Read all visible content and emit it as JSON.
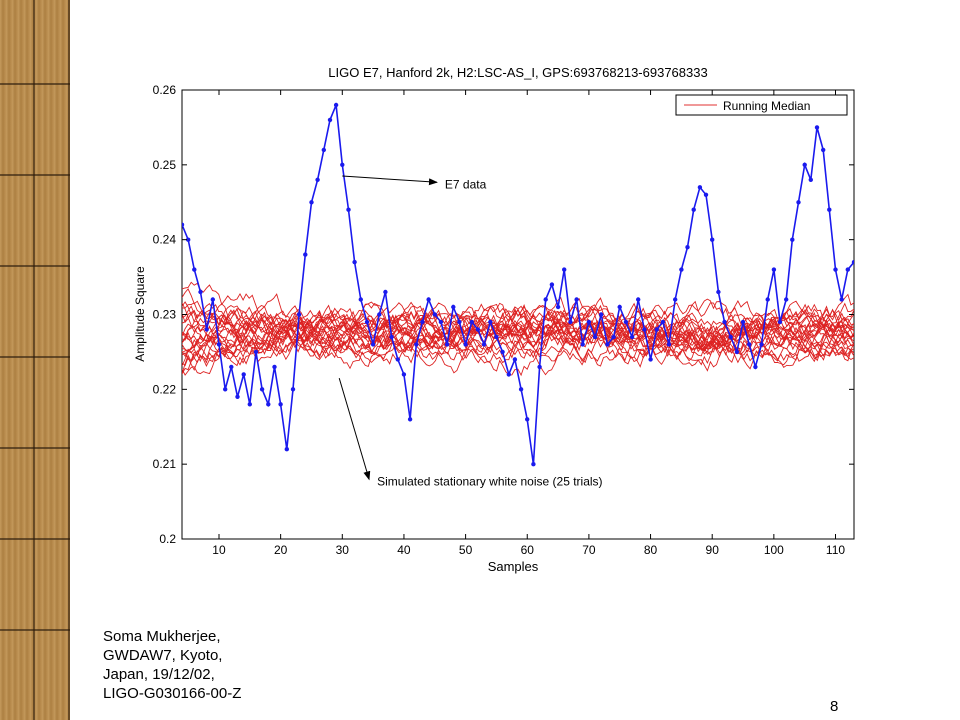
{
  "footer": {
    "lines": [
      "Soma Mukherjee,",
      "GWDAW7, Kyoto,",
      "Japan, 19/12/02,",
      "LIGO-G030166-00-Z"
    ],
    "slide_number": "8"
  },
  "chart_data": {
    "type": "line",
    "title": "LIGO E7, Hanford 2k, H2:LSC-AS_I, GPS:693768213-693768333",
    "xlabel": "Samples",
    "ylabel": "Amplitude Square",
    "xlim": [
      4,
      113
    ],
    "ylim": [
      0.2,
      0.26
    ],
    "xticks": [
      10,
      20,
      30,
      40,
      50,
      60,
      70,
      80,
      90,
      100,
      110
    ],
    "yticks": [
      0.2,
      0.21,
      0.22,
      0.23,
      0.24,
      0.25,
      0.26
    ],
    "legend": {
      "placement": "top-right",
      "entries": [
        {
          "label": "Running Median",
          "color": "#e03030"
        }
      ]
    },
    "grid": false,
    "colors": {
      "noise": "#dd2222",
      "data": "#1a1aee"
    },
    "annotations": [
      {
        "text": "E7 data",
        "xy": [
          30,
          0.2485
        ],
        "xytext": [
          46,
          0.2474
        ]
      },
      {
        "text": "Simulated stationary white noise (25 trials)",
        "xy": [
          29.5,
          0.2215
        ],
        "xytext": [
          35,
          0.2077
        ]
      }
    ],
    "series": [
      {
        "color": "#1a1aee",
        "x": [
          4,
          5,
          6,
          7,
          8,
          9,
          10,
          11,
          12,
          13,
          14,
          15,
          16,
          17,
          18,
          19,
          20,
          21,
          22,
          23,
          24,
          25,
          26,
          27,
          28,
          29,
          30,
          31,
          32,
          33,
          34,
          35,
          36,
          37,
          38,
          39,
          40,
          41,
          42,
          43,
          44,
          45,
          46,
          47,
          48,
          49,
          50,
          51,
          52,
          53,
          54,
          55,
          56,
          57,
          58,
          59,
          60,
          61,
          62,
          63,
          64,
          65,
          66,
          67,
          68,
          69,
          70,
          71,
          72,
          73,
          74,
          75,
          76,
          77,
          78,
          79,
          80,
          81,
          82,
          83,
          84,
          85,
          86,
          87,
          88,
          89,
          90,
          91,
          92,
          93,
          94,
          95,
          96,
          97,
          98,
          99,
          100,
          101,
          102,
          103,
          104,
          105,
          106,
          107,
          108,
          109,
          110,
          111,
          112,
          113
        ],
        "values": [
          0.242,
          0.24,
          0.236,
          0.233,
          0.228,
          0.232,
          0.226,
          0.22,
          0.223,
          0.219,
          0.222,
          0.218,
          0.225,
          0.22,
          0.218,
          0.223,
          0.218,
          0.212,
          0.22,
          0.23,
          0.238,
          0.245,
          0.248,
          0.252,
          0.256,
          0.258,
          0.25,
          0.244,
          0.237,
          0.232,
          0.229,
          0.226,
          0.23,
          0.233,
          0.227,
          0.224,
          0.222,
          0.216,
          0.226,
          0.229,
          0.232,
          0.23,
          0.229,
          0.226,
          0.231,
          0.229,
          0.226,
          0.229,
          0.228,
          0.226,
          0.229,
          0.227,
          0.225,
          0.222,
          0.224,
          0.22,
          0.216,
          0.21,
          0.223,
          0.232,
          0.234,
          0.231,
          0.236,
          0.229,
          0.232,
          0.226,
          0.229,
          0.227,
          0.23,
          0.226,
          0.227,
          0.231,
          0.229,
          0.227,
          0.232,
          0.228,
          0.224,
          0.228,
          0.229,
          0.226,
          0.232,
          0.236,
          0.239,
          0.244,
          0.247,
          0.246,
          0.24,
          0.233,
          0.229,
          0.227,
          0.225,
          0.229,
          0.226,
          0.223,
          0.226,
          0.232,
          0.236,
          0.229,
          0.232,
          0.24,
          0.245,
          0.25,
          0.248,
          0.255,
          0.252,
          0.244,
          0.236,
          0.232,
          0.236,
          0.237
        ]
      }
    ]
  }
}
